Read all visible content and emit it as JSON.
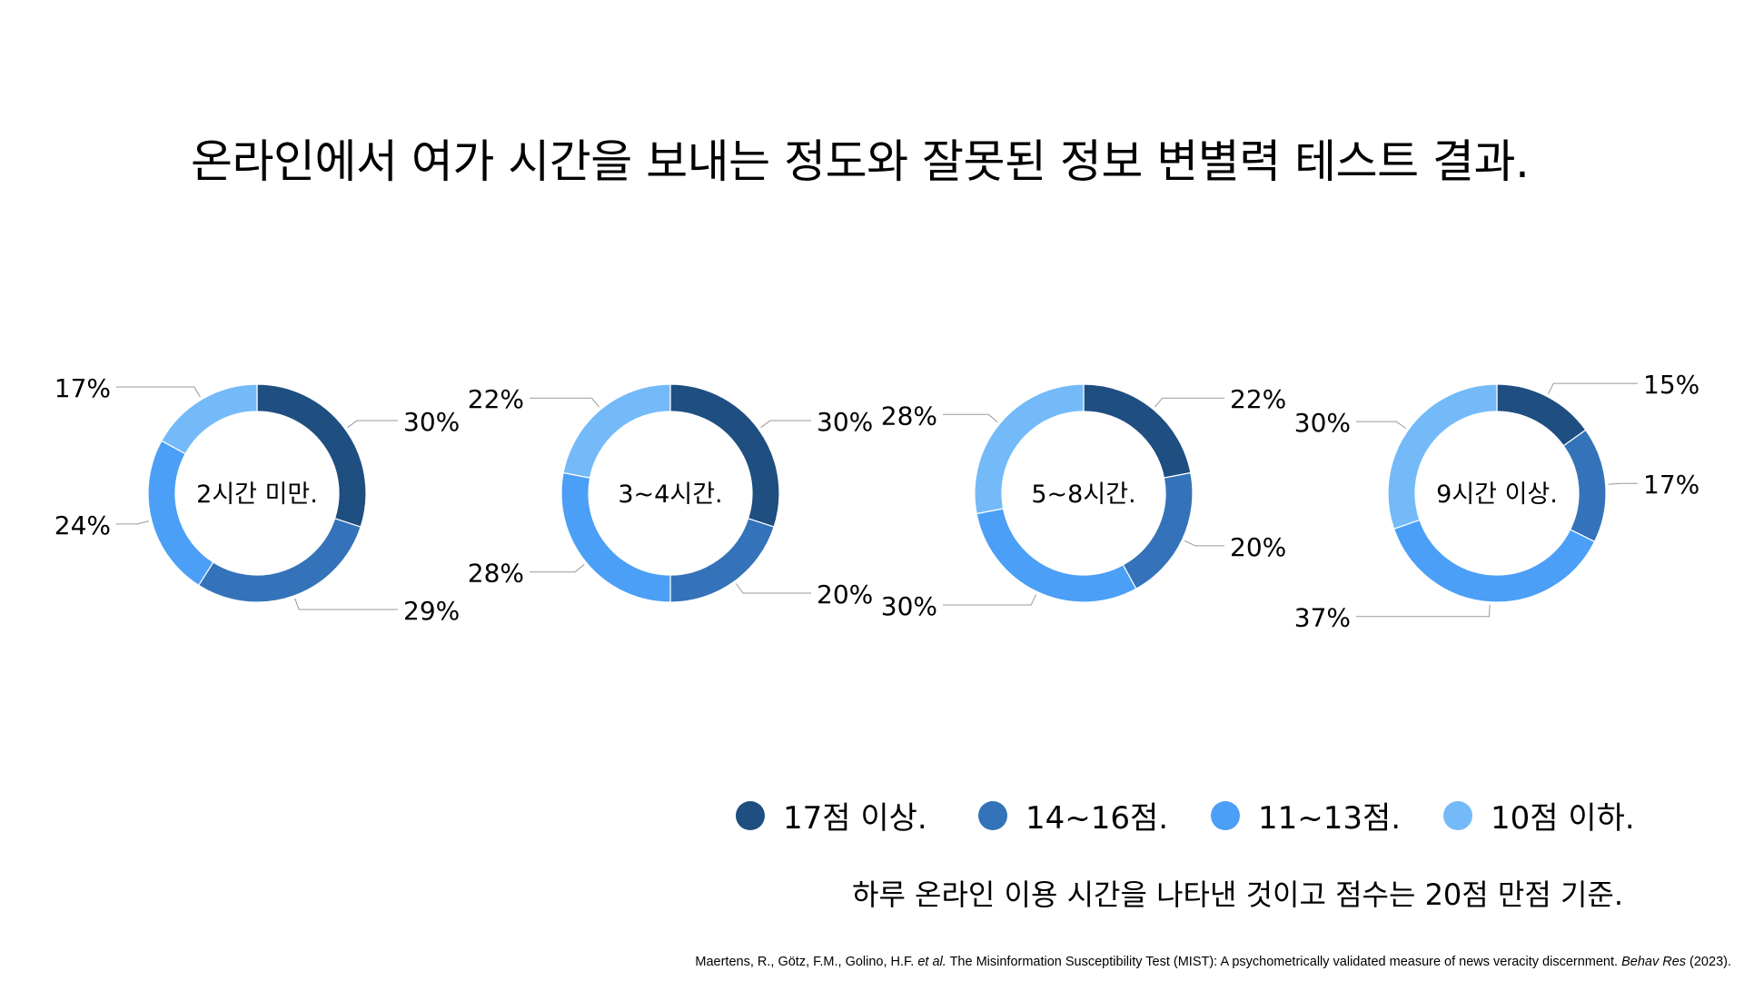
{
  "title": "온라인에서 여가 시간을 보내는 정도와 잘못된 정보 변별력 테스트 결과.",
  "chart_data": {
    "type": "donut",
    "legend_position": "bottom-right",
    "series": [
      {
        "name": "17점 이상.",
        "color": "#1f4e80"
      },
      {
        "name": "14~16점.",
        "color": "#3473b9"
      },
      {
        "name": "11~13점.",
        "color": "#4b9ff6"
      },
      {
        "name": "10점 이하.",
        "color": "#74baf9"
      }
    ],
    "charts": [
      {
        "label": "2시간 미만.",
        "values": [
          30,
          29,
          24,
          17
        ],
        "value_labels": [
          "30%",
          "29%",
          "24%",
          "17%"
        ]
      },
      {
        "label": "3~4시간.",
        "values": [
          30,
          20,
          28,
          22
        ],
        "value_labels": [
          "30%",
          "20%",
          "28%",
          "22%"
        ]
      },
      {
        "label": "5~8시간.",
        "values": [
          22,
          20,
          30,
          28
        ],
        "value_labels": [
          "22%",
          "20%",
          "30%",
          "28%"
        ]
      },
      {
        "label": "9시간 이상.",
        "values": [
          15,
          17,
          37,
          30
        ],
        "value_labels": [
          "15%",
          "17%",
          "37%",
          "30%"
        ]
      }
    ]
  },
  "note": "하루 온라인 이용 시간을 나타낸 것이고 점수는 20점 만점 기준.",
  "citation": {
    "authors": "Maertens, R., Götz, F.M., Golino, H.F. ",
    "etal": "et al.",
    "title": " The Misinformation Susceptibility Test (MIST): A psychometrically validated measure of news veracity discernment. ",
    "journal": "Behav Res",
    "year": " (2023)."
  }
}
